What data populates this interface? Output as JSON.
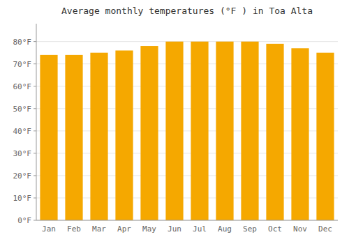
{
  "chart_data": {
    "type": "bar",
    "title": "Average monthly temperatures (°F ) in Toa Alta",
    "categories": [
      "Jan",
      "Feb",
      "Mar",
      "Apr",
      "May",
      "Jun",
      "Jul",
      "Aug",
      "Sep",
      "Oct",
      "Nov",
      "Dec"
    ],
    "values": [
      74,
      74,
      75,
      76,
      78,
      80,
      80,
      80,
      80,
      79,
      77,
      75
    ],
    "color": "#F5A800",
    "ylim": [
      0,
      88
    ],
    "yticks": [
      {
        "value": 0,
        "label": "0°F"
      },
      {
        "value": 10,
        "label": "10°F"
      },
      {
        "value": 20,
        "label": "20°F"
      },
      {
        "value": 30,
        "label": "30°F"
      },
      {
        "value": 40,
        "label": "40°F"
      },
      {
        "value": 50,
        "label": "50°F"
      },
      {
        "value": 60,
        "label": "60°F"
      },
      {
        "value": 70,
        "label": "70°F"
      },
      {
        "value": 80,
        "label": "80°F"
      }
    ],
    "grid": true
  }
}
